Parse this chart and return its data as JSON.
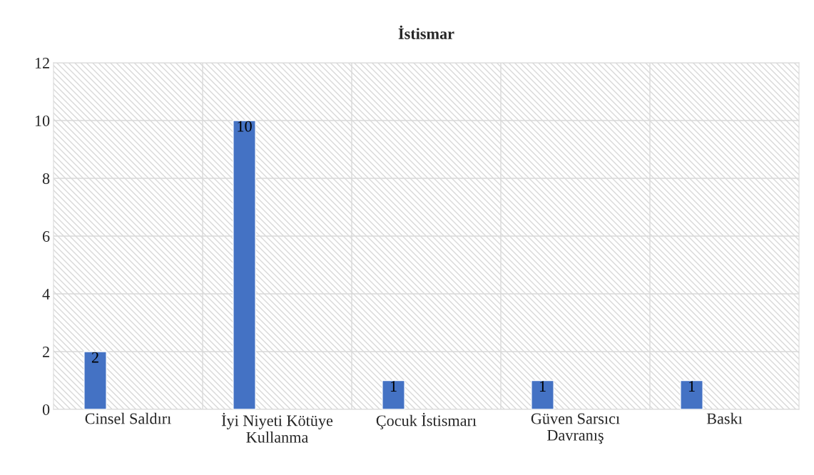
{
  "chart_data": {
    "type": "bar",
    "title": "İstismar",
    "categories": [
      "Cinsel Saldırı",
      "İyi Niyeti Kötüye Kullanma",
      "Çocuk İstismarı",
      "Güven Sarsıcı Davranış",
      "Baskı"
    ],
    "values": [
      2,
      10,
      1,
      1,
      1
    ],
    "color": "#4472c4",
    "ylim": [
      0,
      12
    ],
    "yticks": [
      0,
      2,
      4,
      6,
      8,
      10,
      12
    ],
    "grid": true,
    "data_labels": true
  }
}
